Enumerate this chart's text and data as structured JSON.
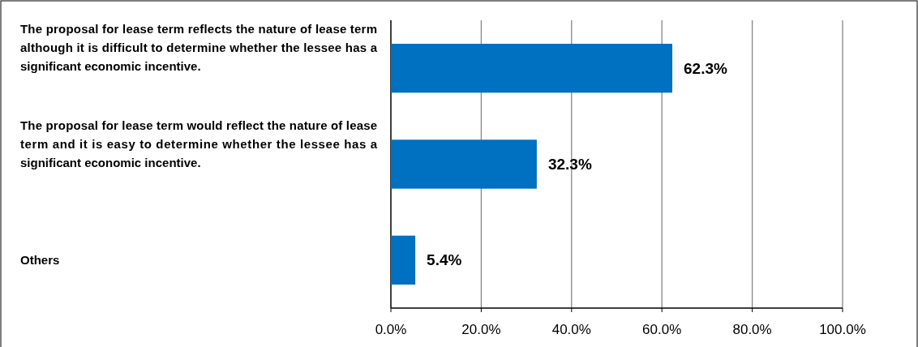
{
  "chart_data": {
    "type": "bar",
    "orientation": "horizontal",
    "categories": [
      "The proposal for lease term reflects the nature of lease term although it is difficult to determine whether the lessee has a significant economic incentive.",
      "The proposal for lease term would reflect the nature of lease term and it is easy to determine whether the lessee has a significant economic incentive.",
      "Others"
    ],
    "values": [
      62.3,
      32.3,
      5.4
    ],
    "value_labels": [
      "62.3%",
      "32.3%",
      "5.4%"
    ],
    "color": "#0070c0",
    "xlim": [
      0,
      100
    ],
    "xticks": [
      {
        "value": 0,
        "label": "0.0%"
      },
      {
        "value": 20,
        "label": "20.0%"
      },
      {
        "value": 40,
        "label": "40.0%"
      },
      {
        "value": 60,
        "label": "60.0%"
      },
      {
        "value": 80,
        "label": "80.0%"
      },
      {
        "value": 100,
        "label": "100.0%"
      }
    ],
    "grid": "x"
  }
}
